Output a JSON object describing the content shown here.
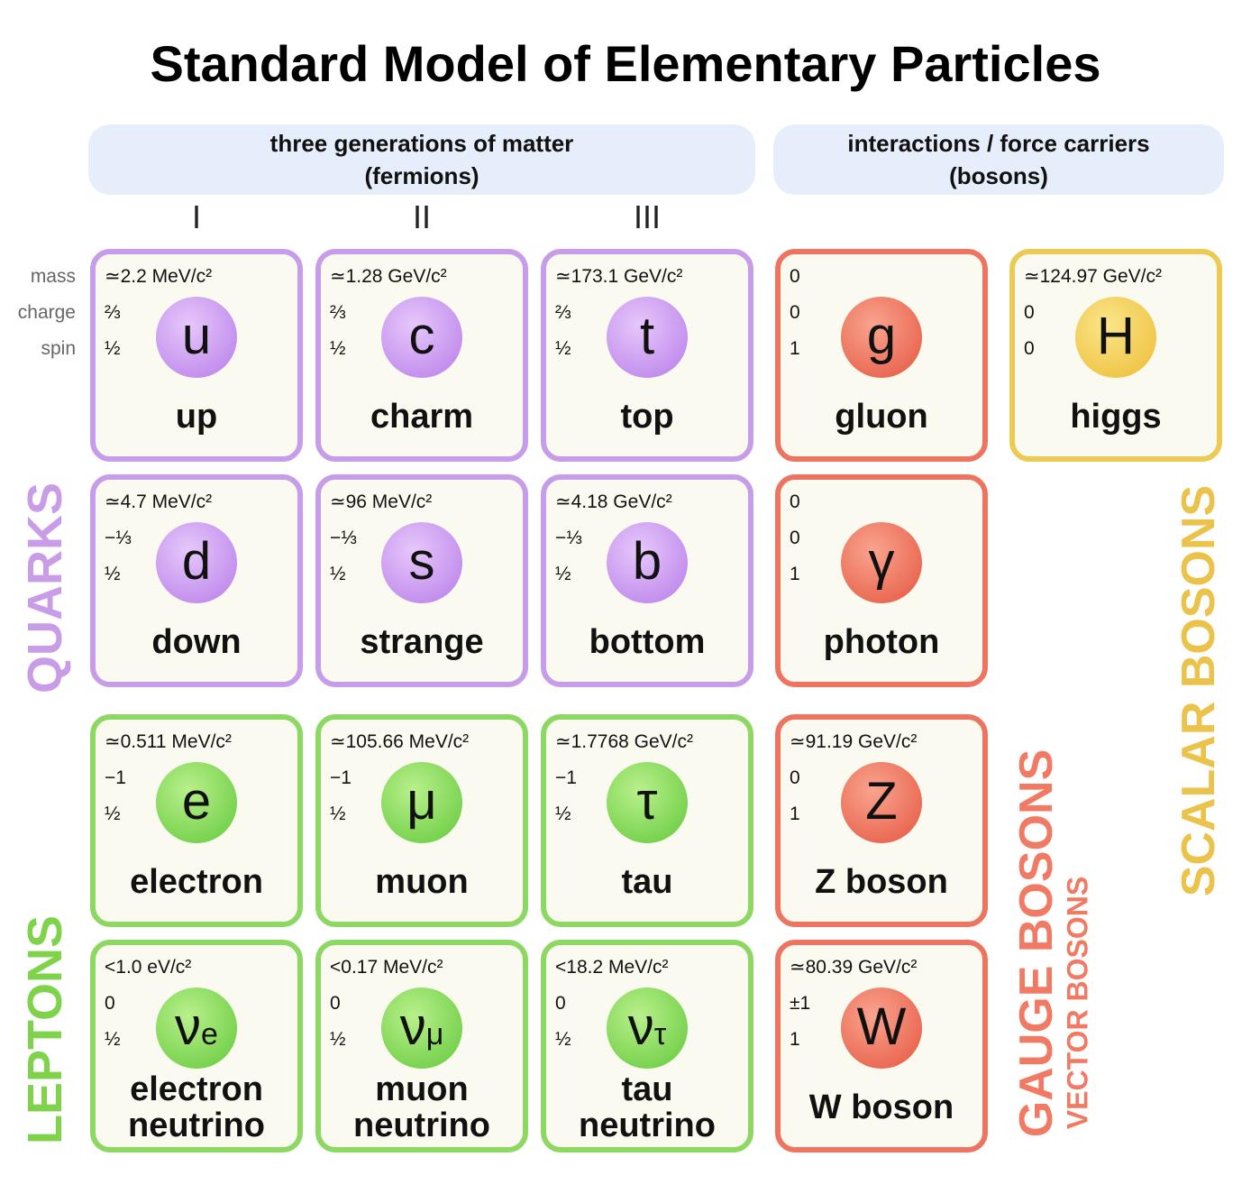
{
  "title": "Standard Model of Elementary Particles",
  "header": {
    "fermions": [
      "three generations of matter",
      "(fermions)"
    ],
    "bosons": [
      "interactions / force carriers",
      "(bosons)"
    ]
  },
  "generations": [
    "I",
    "II",
    "III"
  ],
  "property_labels": [
    "mass",
    "charge",
    "spin"
  ],
  "quarks": {
    "label": "QUARKS",
    "particles": [
      [
        {
          "symbol": "u",
          "name": [
            "up"
          ],
          "properties": [
            "≃2.2 MeV/c²",
            "⅔",
            "½"
          ]
        },
        {
          "symbol": "c",
          "name": [
            "charm"
          ],
          "properties": [
            "≃1.28 GeV/c²",
            "⅔",
            "½"
          ]
        },
        {
          "symbol": "t",
          "name": [
            "top"
          ],
          "properties": [
            "≃173.1 GeV/c²",
            "⅔",
            "½"
          ]
        }
      ],
      [
        {
          "symbol": "d",
          "name": [
            "down"
          ],
          "properties": [
            "≃4.7 MeV/c²",
            "−⅓",
            "½"
          ]
        },
        {
          "symbol": "s",
          "name": [
            "strange"
          ],
          "properties": [
            "≃96 MeV/c²",
            "−⅓",
            "½"
          ]
        },
        {
          "symbol": "b",
          "name": [
            "bottom"
          ],
          "properties": [
            "≃4.18 GeV/c²",
            "−⅓",
            "½"
          ]
        }
      ]
    ]
  },
  "leptons": {
    "label": "LEPTONS",
    "particles": [
      [
        {
          "symbol": "e",
          "name": [
            "electron"
          ],
          "properties": [
            "≃0.511 MeV/c²",
            "−1",
            "½"
          ]
        },
        {
          "symbol": "μ",
          "name": [
            "muon"
          ],
          "properties": [
            "≃105.66 MeV/c²",
            "−1",
            "½"
          ]
        },
        {
          "symbol": "τ",
          "name": [
            "tau"
          ],
          "properties": [
            "≃1.7768 GeV/c²",
            "−1",
            "½"
          ]
        }
      ],
      [
        {
          "symbol": "ν",
          "subscript": "e",
          "name": [
            "electron",
            "neutrino"
          ],
          "properties": [
            "<1.0 eV/c²",
            "0",
            "½"
          ]
        },
        {
          "symbol": "ν",
          "subscript": "μ",
          "name": [
            "muon",
            "neutrino"
          ],
          "properties": [
            "<0.17 MeV/c²",
            "0",
            "½"
          ]
        },
        {
          "symbol": "ν",
          "subscript": "τ",
          "name": [
            "tau",
            "neutrino"
          ],
          "properties": [
            "<18.2 MeV/c²",
            "0",
            "½"
          ]
        }
      ]
    ]
  },
  "gauge_bosons": {
    "label": "GAUGE BOSONS",
    "sublabel": "VECTOR BOSONS",
    "particles": [
      {
        "symbol": "g",
        "name": [
          "gluon"
        ],
        "properties": [
          "0",
          "0",
          "1"
        ]
      },
      {
        "symbol": "γ",
        "name": [
          "photon"
        ],
        "properties": [
          "0",
          "0",
          "1"
        ]
      },
      {
        "symbol": "Z",
        "name": [
          "Z boson"
        ],
        "properties": [
          "≃91.19 GeV/c²",
          "0",
          "1"
        ]
      },
      {
        "symbol": "W",
        "name": [
          "W boson"
        ],
        "properties": [
          "≃80.39 GeV/c²",
          "±1",
          "1"
        ]
      }
    ]
  },
  "scalar_bosons": {
    "label": "SCALAR BOSONS",
    "particles": [
      {
        "symbol": "H",
        "name": [
          "higgs"
        ],
        "properties": [
          "≃124.97 GeV/c²",
          "0",
          "0"
        ]
      }
    ]
  }
}
